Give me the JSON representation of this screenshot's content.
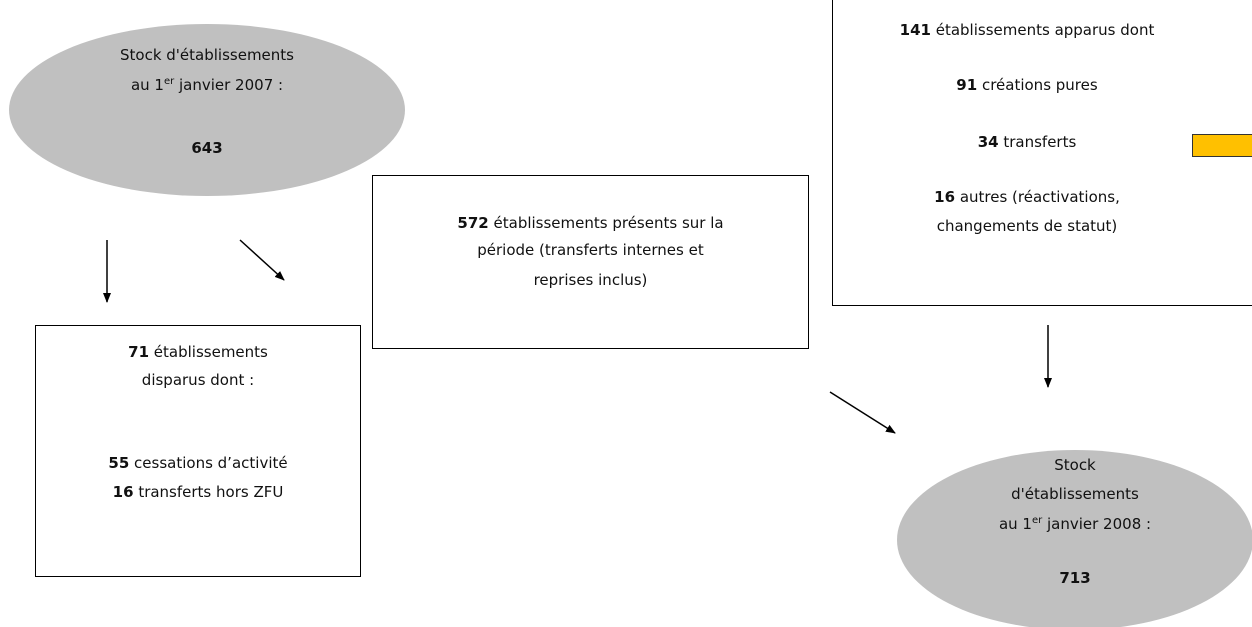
{
  "start": {
    "line1": "Stock d'établissements",
    "line2_prefix": "au 1",
    "line2_sup": "er",
    "line2_suffix": " janvier 2007 :",
    "value": 643
  },
  "present": {
    "value": 572,
    "lines": [
      "établissements présents sur la",
      "période (transferts internes et",
      "reprises inclus)"
    ]
  },
  "disappeared": {
    "value": 71,
    "lines": [
      "établissements",
      "disparus dont :"
    ],
    "items": [
      {
        "value": 55,
        "label": "cessations d’activité"
      },
      {
        "value": 16,
        "label": "transferts hors ZFU"
      }
    ]
  },
  "appeared": {
    "value": 141,
    "label": "établissements apparus dont",
    "items": [
      {
        "value": 91,
        "label": "créations pures"
      },
      {
        "value": 34,
        "label": "transferts"
      },
      {
        "value": 16,
        "label": "autres (réactivations,",
        "label2": "changements de statut)"
      }
    ]
  },
  "end": {
    "line1": "Stock",
    "line2": "d'établissements",
    "line3_prefix": "au 1",
    "line3_sup": "er",
    "line3_suffix": " janvier 2008 :",
    "value": 713
  }
}
